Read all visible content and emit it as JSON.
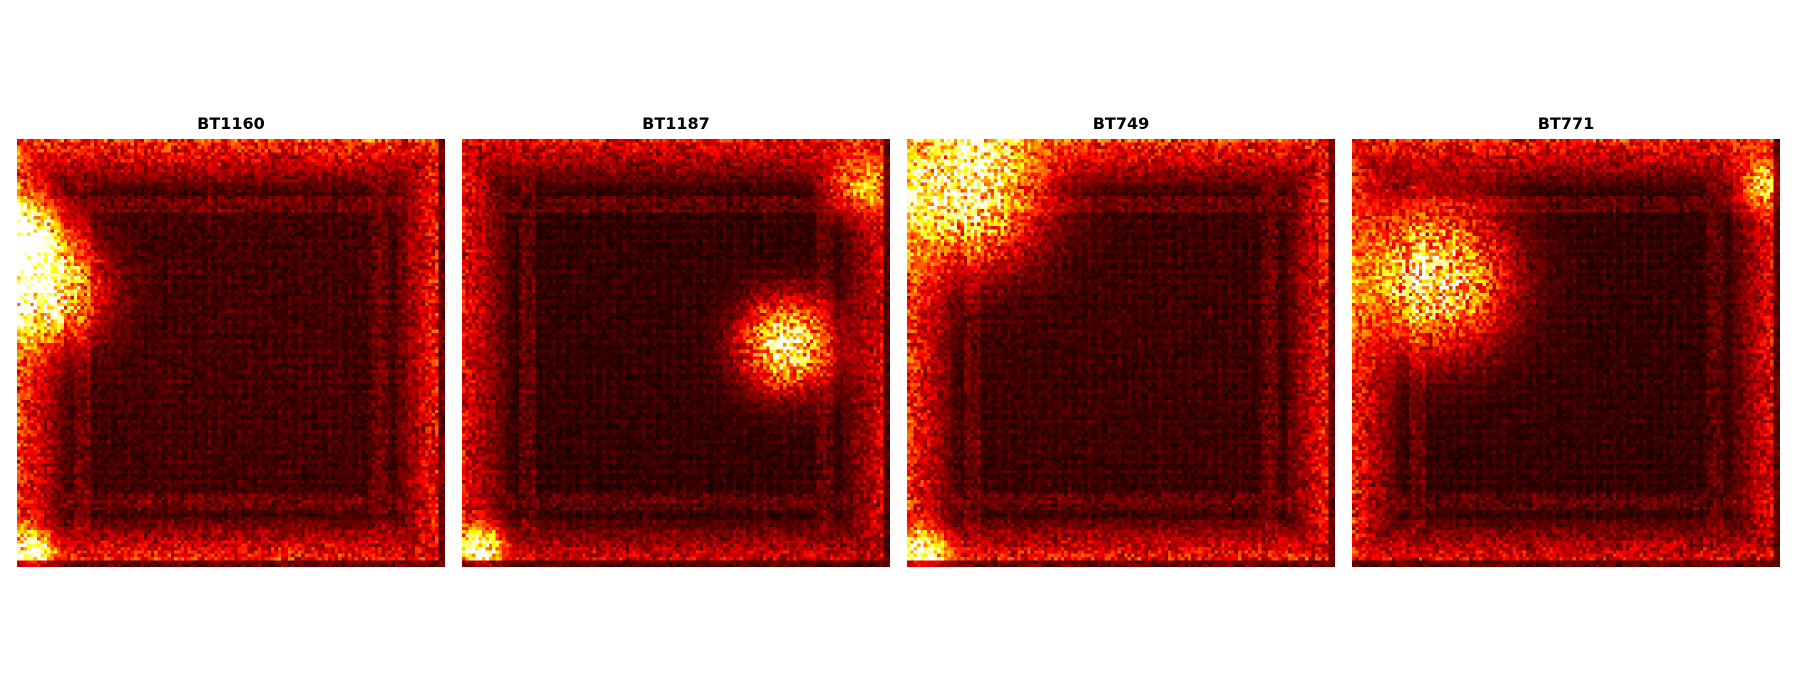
{
  "chart_data": [
    {
      "type": "heatmap",
      "title": "BT1160",
      "xlabel": "",
      "ylabel": "",
      "axes_visible": false,
      "colormap": "hot",
      "grid_size": [
        128,
        128
      ],
      "value_range": [
        0,
        1
      ],
      "hotspots": [
        {
          "row": 0.35,
          "col": 0.06,
          "intensity": 0.95,
          "spread": 0.12
        },
        {
          "row": 0.22,
          "col": 0.02,
          "intensity": 0.8,
          "spread": 0.08
        },
        {
          "row": 0.97,
          "col": 0.03,
          "intensity": 0.9,
          "spread": 0.05
        }
      ],
      "border_intensity": 0.45,
      "background_intensity": 0.08
    },
    {
      "type": "heatmap",
      "title": "BT1187",
      "xlabel": "",
      "ylabel": "",
      "axes_visible": false,
      "colormap": "hot",
      "grid_size": [
        128,
        128
      ],
      "value_range": [
        0,
        1
      ],
      "hotspots": [
        {
          "row": 0.48,
          "col": 0.76,
          "intensity": 0.95,
          "spread": 0.1
        },
        {
          "row": 0.96,
          "col": 0.04,
          "intensity": 0.9,
          "spread": 0.05
        },
        {
          "row": 0.1,
          "col": 0.93,
          "intensity": 0.55,
          "spread": 0.07
        }
      ],
      "border_intensity": 0.35,
      "background_intensity": 0.06
    },
    {
      "type": "heatmap",
      "title": "BT749",
      "xlabel": "",
      "ylabel": "",
      "axes_visible": false,
      "colormap": "hot",
      "grid_size": [
        128,
        128
      ],
      "value_range": [
        0,
        1
      ],
      "hotspots": [
        {
          "row": 0.12,
          "col": 0.14,
          "intensity": 0.95,
          "spread": 0.16
        },
        {
          "row": 0.97,
          "col": 0.04,
          "intensity": 0.95,
          "spread": 0.05
        }
      ],
      "border_intensity": 0.45,
      "background_intensity": 0.07
    },
    {
      "type": "heatmap",
      "title": "BT771",
      "xlabel": "",
      "ylabel": "",
      "axes_visible": false,
      "colormap": "hot",
      "grid_size": [
        128,
        128
      ],
      "value_range": [
        0,
        1
      ],
      "hotspots": [
        {
          "row": 0.32,
          "col": 0.19,
          "intensity": 0.9,
          "spread": 0.16
        },
        {
          "row": 0.1,
          "col": 0.96,
          "intensity": 0.55,
          "spread": 0.06
        }
      ],
      "border_intensity": 0.4,
      "background_intensity": 0.06
    }
  ]
}
